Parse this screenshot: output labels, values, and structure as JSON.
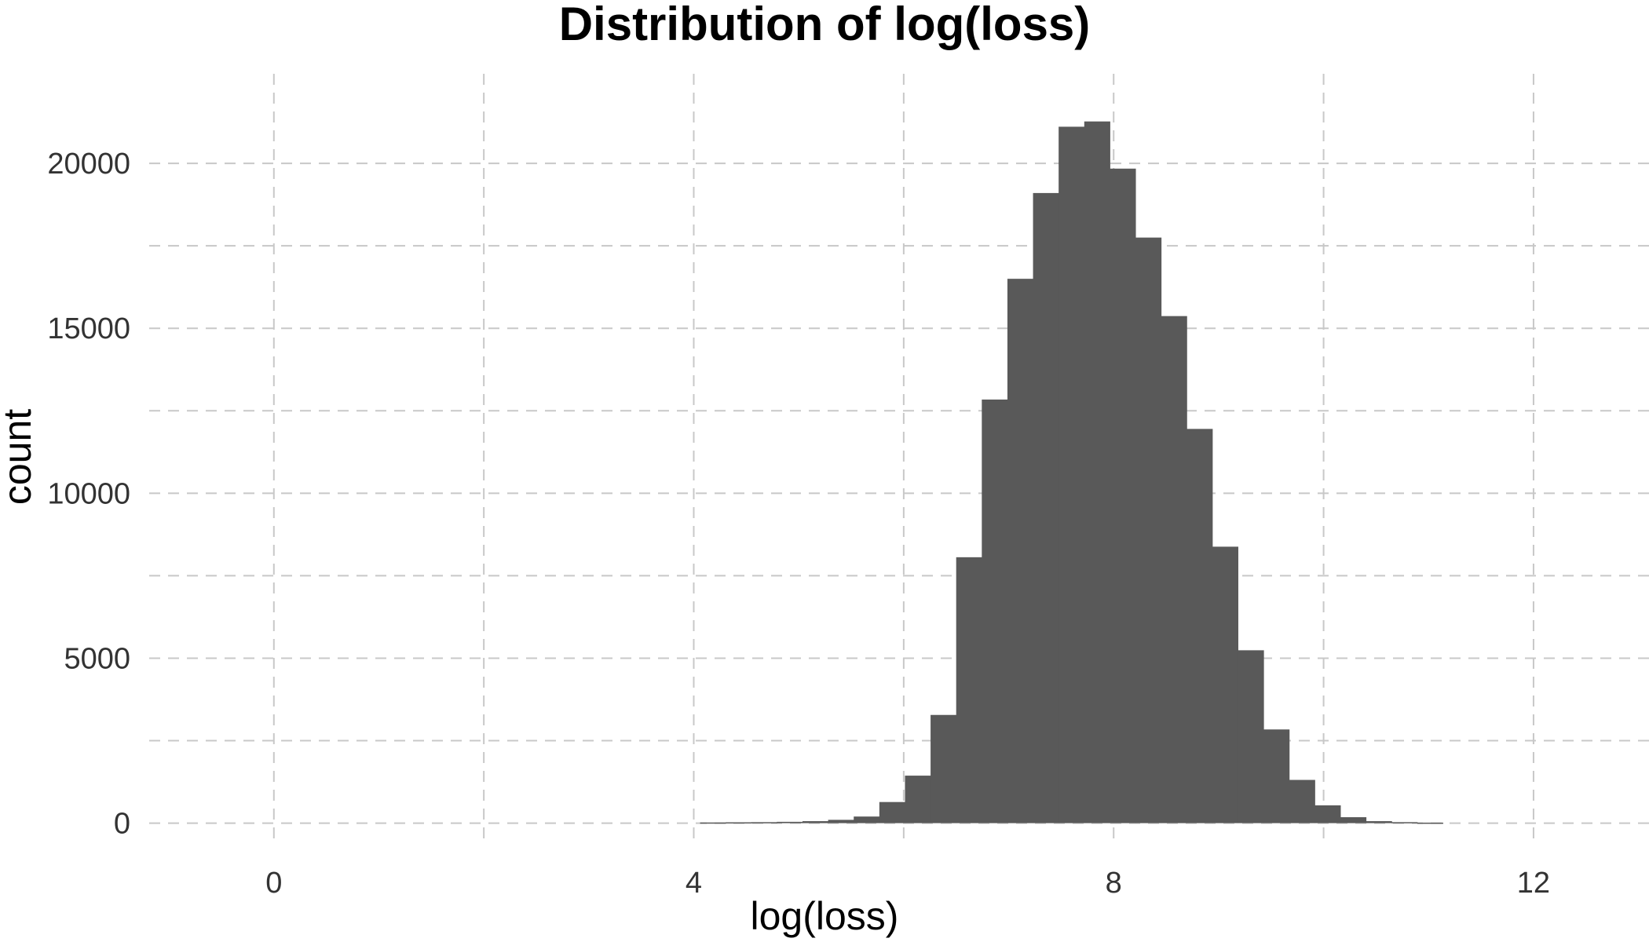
{
  "chart_data": {
    "type": "bar",
    "title": "Distribution of log(loss)",
    "xlabel": "log(loss)",
    "ylabel": "count",
    "xlim": [
      -1.3,
      13.1
    ],
    "ylim": [
      -700,
      23000
    ],
    "x_ticks": [
      0,
      4,
      8,
      12
    ],
    "y_ticks": [
      0,
      5000,
      10000,
      15000,
      20000
    ],
    "x_minor_gridlines": [
      2,
      6,
      10
    ],
    "y_minor_gridlines": [
      2500,
      7500,
      12500,
      17500
    ],
    "grid": true,
    "bin_width": 0.244,
    "bins": [
      {
        "x0": 4.06,
        "count": 20
      },
      {
        "x0": 4.304,
        "count": 25
      },
      {
        "x0": 4.548,
        "count": 30
      },
      {
        "x0": 4.792,
        "count": 40
      },
      {
        "x0": 5.036,
        "count": 60
      },
      {
        "x0": 5.28,
        "count": 100
      },
      {
        "x0": 5.524,
        "count": 200
      },
      {
        "x0": 5.768,
        "count": 640
      },
      {
        "x0": 6.012,
        "count": 1440
      },
      {
        "x0": 6.256,
        "count": 3280
      },
      {
        "x0": 6.5,
        "count": 8060
      },
      {
        "x0": 6.744,
        "count": 12840
      },
      {
        "x0": 6.988,
        "count": 16500
      },
      {
        "x0": 7.232,
        "count": 19100
      },
      {
        "x0": 7.476,
        "count": 21110
      },
      {
        "x0": 7.72,
        "count": 21270
      },
      {
        "x0": 7.964,
        "count": 19840
      },
      {
        "x0": 8.208,
        "count": 17750
      },
      {
        "x0": 8.452,
        "count": 15370
      },
      {
        "x0": 8.696,
        "count": 11950
      },
      {
        "x0": 8.94,
        "count": 8380
      },
      {
        "x0": 9.184,
        "count": 5240
      },
      {
        "x0": 9.428,
        "count": 2840
      },
      {
        "x0": 9.672,
        "count": 1310
      },
      {
        "x0": 9.916,
        "count": 540
      },
      {
        "x0": 10.16,
        "count": 180
      },
      {
        "x0": 10.404,
        "count": 60
      },
      {
        "x0": 10.648,
        "count": 30
      },
      {
        "x0": 10.892,
        "count": 15
      }
    ],
    "bar_color": "#595959",
    "grid_color": "#c8c8c8"
  }
}
